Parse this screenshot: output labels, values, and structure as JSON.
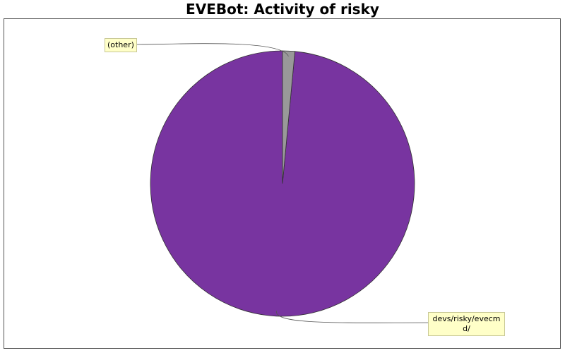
{
  "chart_data": {
    "type": "pie",
    "title": "EVEBot: Activity of risky",
    "slices": [
      {
        "label": "devs/risky/evecmd/",
        "value": 98.5,
        "color": "#7834a0"
      },
      {
        "label": "(other)",
        "value": 1.5,
        "color": "#999999"
      }
    ],
    "start_angle": "12 o'clock",
    "direction": "counter-clockwise",
    "labels_with_leader_lines": true
  }
}
